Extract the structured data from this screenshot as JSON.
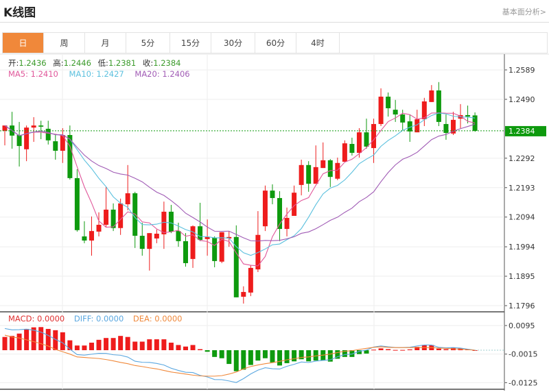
{
  "header": {
    "title": "K线图",
    "link": "基本面分析>"
  },
  "tabs": [
    {
      "label": "日",
      "active": true
    },
    {
      "label": "周"
    },
    {
      "label": "月"
    },
    {
      "label": "5分"
    },
    {
      "label": "15分"
    },
    {
      "label": "30分"
    },
    {
      "label": "60分"
    },
    {
      "label": "4时"
    }
  ],
  "ohlc_info": {
    "open_label": "开:",
    "open": "1.2436",
    "high_label": "高:",
    "high": "1.2446",
    "low_label": "低:",
    "low": "1.2381",
    "close_label": "收:",
    "close": "1.2384"
  },
  "ma_info": {
    "ma5": "MA5: 1.2410",
    "ma10": "MA10: 1.2427",
    "ma20": "MA20: 1.2406"
  },
  "macd_info": {
    "macd": "MACD: 0.0000",
    "diff": "DIFF: 0.0000",
    "dea": "DEA: 0.0000"
  },
  "colors": {
    "up": "#ee1c1c",
    "down": "#0e9a0e",
    "ma5": "#e0579a",
    "ma10": "#5bc0de",
    "ma20": "#a05bb5",
    "diff": "#5aa7e0",
    "dea": "#f0883a",
    "tab_active": "#f0883a",
    "current_price_bg": "#0e9a0e"
  },
  "chart_data": [
    {
      "type": "candlestick",
      "current_price": "1.2384",
      "y_ticks": [
        "1.2589",
        "1.2490",
        "1.2292",
        "1.2193",
        "1.2094",
        "1.1994",
        "1.1895",
        "1.1796"
      ],
      "ylim": [
        1.1796,
        1.2589
      ],
      "grid": true,
      "ma_periods": [
        5,
        10,
        20
      ],
      "ohlc": [
        [
          1.2384,
          1.2402,
          1.2335,
          1.2402
        ],
        [
          1.2402,
          1.2448,
          1.2324,
          1.2368
        ],
        [
          1.237,
          1.2414,
          1.2264,
          1.2333
        ],
        [
          1.2322,
          1.2402,
          1.2282,
          1.2395
        ],
        [
          1.2395,
          1.243,
          1.2347,
          1.2402
        ],
        [
          1.2402,
          1.2418,
          1.2356,
          1.2398
        ],
        [
          1.2391,
          1.2418,
          1.2338,
          1.2352
        ],
        [
          1.2349,
          1.237,
          1.2287,
          1.2317
        ],
        [
          1.2317,
          1.2393,
          1.2276,
          1.237
        ],
        [
          1.237,
          1.2402,
          1.222,
          1.2225
        ],
        [
          1.2225,
          1.2255,
          1.2045,
          1.205
        ],
        [
          1.2029,
          1.208,
          1.2006,
          1.2015
        ],
        [
          1.2015,
          1.2096,
          1.1964,
          1.2047
        ],
        [
          1.2045,
          1.211,
          1.2029,
          1.2068
        ],
        [
          1.2068,
          1.2195,
          1.2059,
          1.2119
        ],
        [
          1.2119,
          1.214,
          1.2047,
          1.2057
        ],
        [
          1.2057,
          1.2156,
          1.2034,
          1.214
        ],
        [
          1.2137,
          1.2269,
          1.2117,
          1.2174
        ],
        [
          1.2174,
          1.2179,
          1.199,
          1.2031
        ],
        [
          1.2031,
          1.2075,
          1.1964,
          1.1987
        ],
        [
          1.1987,
          1.204,
          1.1914,
          1.204
        ],
        [
          1.2022,
          1.2052,
          1.2006,
          1.2038
        ],
        [
          1.2036,
          1.2146,
          1.1987,
          1.2112
        ],
        [
          1.2112,
          1.2135,
          1.204,
          1.2045
        ],
        [
          1.2047,
          1.2075,
          1.1994,
          1.2013
        ],
        [
          1.2013,
          1.204,
          1.1927,
          1.1939
        ],
        [
          1.1953,
          1.2066,
          1.1923,
          1.2063
        ],
        [
          1.2063,
          1.2142,
          1.2013,
          1.2017
        ],
        [
          1.202,
          1.2086,
          1.1964,
          1.2027
        ],
        [
          1.2024,
          1.2029,
          1.1925,
          1.1946
        ],
        [
          1.1944,
          1.2043,
          1.1939,
          1.2043
        ],
        [
          1.2022,
          1.2047,
          1.1994,
          1.2027
        ],
        [
          1.2027,
          1.2066,
          1.1824,
          1.1824
        ],
        [
          1.1826,
          1.1861,
          1.1803,
          1.1842
        ],
        [
          1.184,
          1.1932,
          1.1828,
          1.1923
        ],
        [
          1.1918,
          1.2114,
          1.1909,
          1.2034
        ],
        [
          1.2063,
          1.22,
          1.2047,
          1.2183
        ],
        [
          1.2183,
          1.2204,
          1.2137,
          1.2158
        ],
        [
          1.2158,
          1.2181,
          1.2013,
          1.2054
        ],
        [
          1.2054,
          1.2126,
          1.2029,
          1.2091
        ],
        [
          1.2098,
          1.22,
          1.2098,
          1.2176
        ],
        [
          1.2202,
          1.2287,
          1.2167,
          1.2269
        ],
        [
          1.2269,
          1.2282,
          1.2179,
          1.2206
        ],
        [
          1.2206,
          1.2335,
          1.2206,
          1.2262
        ],
        [
          1.2259,
          1.2345,
          1.2259,
          1.2285
        ],
        [
          1.2285,
          1.2289,
          1.2195,
          1.2229
        ],
        [
          1.2223,
          1.2294,
          1.2218,
          1.2276
        ],
        [
          1.228,
          1.2352,
          1.228,
          1.2342
        ],
        [
          1.234,
          1.2361,
          1.2301,
          1.231
        ],
        [
          1.231,
          1.2393,
          1.2294,
          1.2379
        ],
        [
          1.2379,
          1.2425,
          1.2324,
          1.2331
        ],
        [
          1.2326,
          1.2425,
          1.2276,
          1.2407
        ],
        [
          1.2407,
          1.2527,
          1.24,
          1.2499
        ],
        [
          1.2499,
          1.2513,
          1.2432,
          1.246
        ],
        [
          1.2455,
          1.2488,
          1.2414,
          1.2439
        ],
        [
          1.2439,
          1.2455,
          1.2386,
          1.2412
        ],
        [
          1.2416,
          1.2439,
          1.2347,
          1.2382
        ],
        [
          1.2379,
          1.2455,
          1.2379,
          1.2423
        ],
        [
          1.2423,
          1.2495,
          1.24,
          1.2483
        ],
        [
          1.2481,
          1.2538,
          1.2481,
          1.252
        ],
        [
          1.252,
          1.2548,
          1.24,
          1.2414
        ],
        [
          1.2407,
          1.2439,
          1.2354,
          1.2377
        ],
        [
          1.2375,
          1.2448,
          1.237,
          1.2421
        ],
        [
          1.2425,
          1.2474,
          1.2393,
          1.2437
        ],
        [
          1.2437,
          1.2469,
          1.2409,
          1.2432
        ],
        [
          1.2436,
          1.2446,
          1.2381,
          1.2384
        ]
      ]
    },
    {
      "type": "bar+line",
      "y_ticks": [
        "0.0095",
        "-0.0015",
        "-0.0125"
      ],
      "ylim": [
        -0.014,
        0.011
      ],
      "macd": [
        0.0051,
        0.0055,
        0.0064,
        0.0082,
        0.0088,
        0.0089,
        0.0082,
        0.0077,
        0.0069,
        0.0038,
        0.0018,
        0.0018,
        0.0029,
        0.004,
        0.0047,
        0.0047,
        0.0055,
        0.0051,
        0.0033,
        0.0033,
        0.0042,
        0.0042,
        0.0042,
        0.0029,
        0.002,
        0.0014,
        0.002,
        0.0004,
        -0.0006,
        -0.0026,
        -0.0031,
        -0.0053,
        -0.0081,
        -0.0075,
        -0.0057,
        -0.004,
        -0.0031,
        -0.0047,
        -0.0059,
        -0.005,
        -0.0043,
        -0.0035,
        -0.0043,
        -0.004,
        -0.004,
        -0.0044,
        -0.0033,
        -0.0026,
        -0.0026,
        -0.0015,
        -0.0013,
        0.0002,
        0.0007,
        0.0004,
        0.0001,
        0.0001,
        0.0003,
        0.0013,
        0.002,
        0.002,
        0.0006,
        0.0004,
        0.001,
        0.0008,
        0.0004,
        0.0
      ],
      "dea": [
        0.0058,
        0.0051,
        0.0047,
        0.004,
        0.0033,
        0.0025,
        0.0016,
        0.0003,
        -0.0006,
        -0.0015,
        -0.0026,
        -0.0028,
        -0.003,
        -0.0032,
        -0.0036,
        -0.0041,
        -0.0047,
        -0.0052,
        -0.0059,
        -0.0063,
        -0.0068,
        -0.0072,
        -0.0078,
        -0.0084,
        -0.0088,
        -0.0092,
        -0.0096,
        -0.0099,
        -0.01,
        -0.01,
        -0.0098,
        -0.0092,
        -0.0084,
        -0.0072,
        -0.0063,
        -0.0057,
        -0.0052,
        -0.0048,
        -0.0043,
        -0.0037,
        -0.0033,
        -0.0028,
        -0.0026,
        -0.0022,
        -0.0019,
        -0.0015,
        -0.0009,
        -0.0004,
        -0.0002,
        0.0003,
        0.0007,
        0.0011,
        0.0013,
        0.0011,
        0.001,
        0.001,
        0.001,
        0.001,
        0.001,
        0.001,
        0.0008,
        0.0007,
        0.0005,
        0.0004,
        0.0002,
        0.0
      ]
    }
  ]
}
